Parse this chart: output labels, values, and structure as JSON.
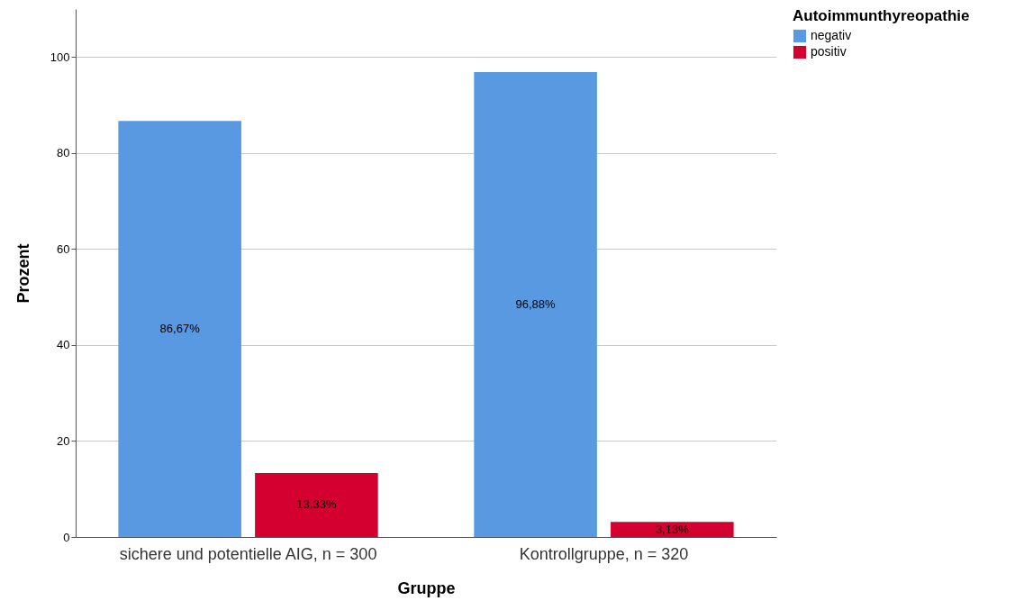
{
  "chart_data": {
    "type": "bar",
    "xlabel": "Gruppe",
    "ylabel": "Prozent",
    "legend_title": "Autoimmunthyreopathie",
    "legend": "top right",
    "grid": "y",
    "categories": [
      "sichere und potentielle AIG, n = 300",
      "Kontrollgruppe, n = 320"
    ],
    "ylim": [
      0,
      110
    ],
    "yticks": [
      0,
      20,
      40,
      60,
      80,
      100
    ],
    "series": [
      {
        "name": "negativ",
        "color": "#5899e2",
        "values": [
          86.67,
          96.88
        ],
        "value_labels": [
          "86,67%",
          "96,88%"
        ]
      },
      {
        "name": "positiv",
        "color": "#d30030",
        "values": [
          13.33,
          3.13
        ],
        "value_labels": [
          "13,33%",
          "3,13%"
        ]
      }
    ]
  }
}
